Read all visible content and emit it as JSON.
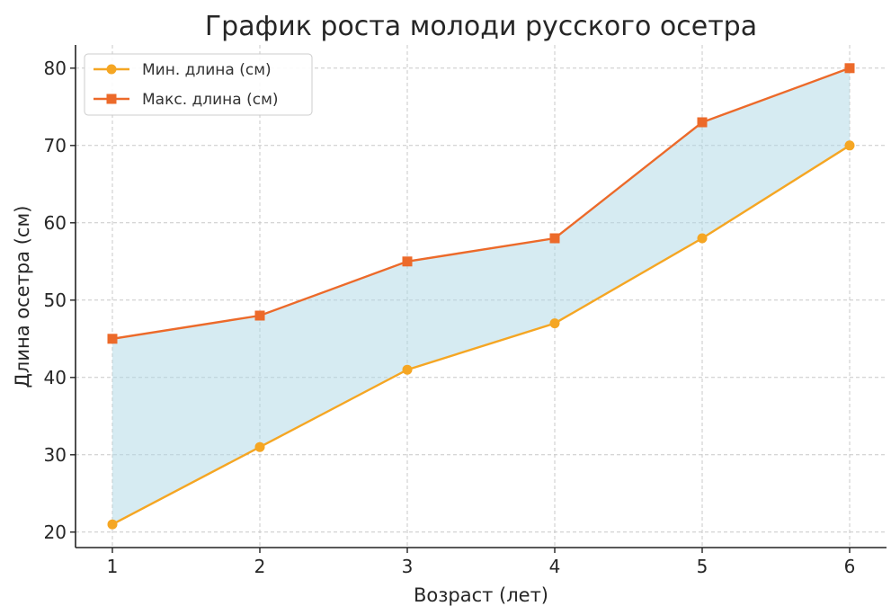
{
  "chart_data": {
    "type": "line",
    "title": "График роста молоди русского осетра",
    "xlabel": "Возраст (лет)",
    "ylabel": "Длина осетра (см)",
    "x": [
      1,
      2,
      3,
      4,
      5,
      6
    ],
    "xlim": [
      0.75,
      6.25
    ],
    "ylim": [
      18,
      83
    ],
    "yticks": [
      20,
      30,
      40,
      50,
      60,
      70,
      80
    ],
    "grid": true,
    "legend_position": "top-left",
    "fill_between": {
      "color": "#add8e6"
    },
    "series": [
      {
        "name": "Мин. длина (см)",
        "values": [
          21,
          31,
          41,
          47,
          58,
          70
        ],
        "color": "#f5a623",
        "marker": "circle"
      },
      {
        "name": "Макс. длина (см)",
        "values": [
          45,
          48,
          55,
          58,
          73,
          80
        ],
        "color": "#ec6a2a",
        "marker": "square"
      }
    ]
  }
}
